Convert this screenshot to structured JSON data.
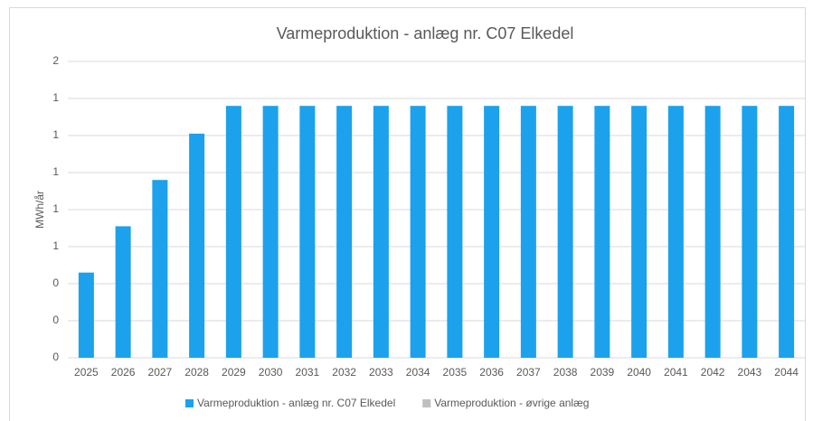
{
  "chart_data": {
    "type": "stacked_bar",
    "title": "Varmeproduktion - anlæg nr. C07 Elkedel",
    "y_label": "MWh/år",
    "categories": [
      "2025",
      "2026",
      "2027",
      "2028",
      "2029",
      "2030",
      "2031",
      "2032",
      "2033",
      "2034",
      "2035",
      "2036",
      "2037",
      "2038",
      "2039",
      "2040",
      "2041",
      "2042",
      "2043",
      "2044"
    ],
    "series": [
      {
        "name": "Varmeproduktion - anlæg nr. C07 Elkedel",
        "color": "#1ca1ec",
        "values": [
          0.46,
          0.71,
          0.96,
          1.21,
          1.36,
          1.36,
          1.36,
          1.36,
          1.36,
          1.36,
          1.36,
          1.36,
          1.36,
          1.36,
          1.36,
          1.36,
          1.36,
          1.36,
          1.36,
          1.36
        ]
      },
      {
        "name": "Varmeproduktion - øvrige anlæg",
        "color": "#bfbfbf",
        "values": [
          0,
          0,
          0,
          0,
          0,
          0,
          0,
          0,
          0,
          0,
          0,
          0,
          0,
          0,
          0,
          0,
          0,
          0,
          0,
          0
        ]
      }
    ],
    "ylim": [
      0,
      1.6
    ],
    "yticks": [
      {
        "value": 0,
        "label": "0"
      },
      {
        "value": 0.2,
        "label": "0"
      },
      {
        "value": 0.4,
        "label": "0"
      },
      {
        "value": 0.6,
        "label": "1"
      },
      {
        "value": 0.8,
        "label": "1"
      },
      {
        "value": 1.0,
        "label": "1"
      },
      {
        "value": 1.2,
        "label": "1"
      },
      {
        "value": 1.4,
        "label": "1"
      },
      {
        "value": 1.6,
        "label": "2"
      }
    ],
    "grid": true,
    "legend": "bottom"
  }
}
